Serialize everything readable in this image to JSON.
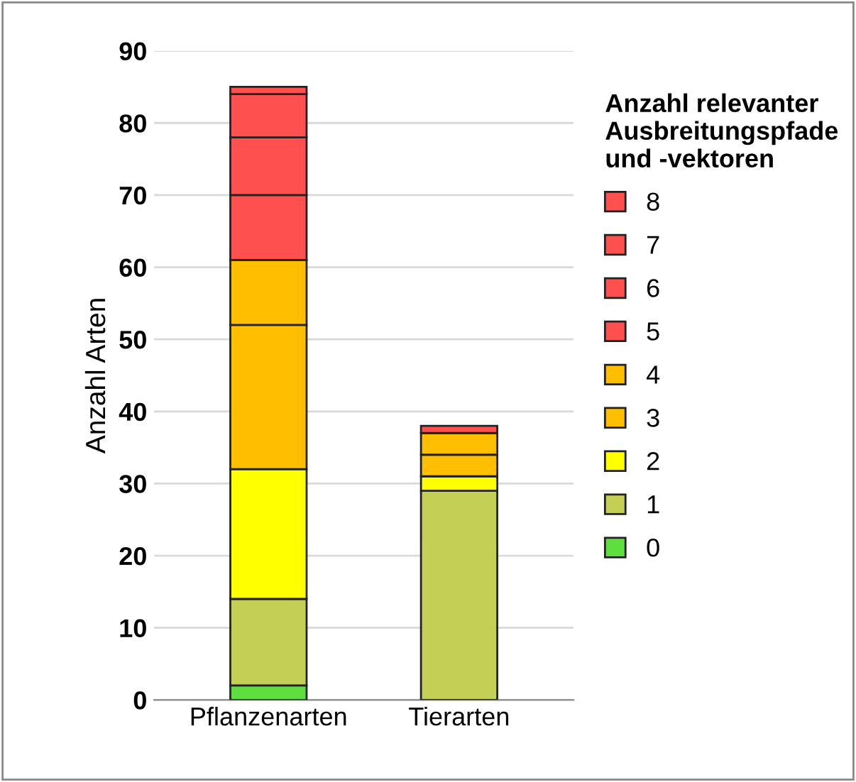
{
  "chart_data": {
    "type": "bar",
    "stacked": true,
    "ylabel": "Anzahl Arten",
    "legend_title": "Anzahl relevanter\nAusbreitungspfade\nund -vektoren",
    "categories": [
      "Pflanzenarten",
      "Tierarten"
    ],
    "series": [
      {
        "name": "0",
        "color": "#5fdf3f",
        "values": [
          2,
          0
        ]
      },
      {
        "name": "1",
        "color": "#c3cf55",
        "values": [
          12,
          29
        ]
      },
      {
        "name": "2",
        "color": "#ffff00",
        "values": [
          18,
          2
        ]
      },
      {
        "name": "3",
        "color": "#ffbf00",
        "values": [
          20,
          3
        ]
      },
      {
        "name": "4",
        "color": "#ffbf00",
        "values": [
          9,
          3
        ]
      },
      {
        "name": "5",
        "color": "#ff5050",
        "values": [
          9,
          1
        ]
      },
      {
        "name": "6",
        "color": "#ff5050",
        "values": [
          8,
          0
        ]
      },
      {
        "name": "7",
        "color": "#ff5050",
        "values": [
          6,
          0
        ]
      },
      {
        "name": "8",
        "color": "#ff5050",
        "values": [
          1,
          0
        ]
      }
    ],
    "ylim": [
      0,
      90
    ],
    "yticks": [
      0,
      10,
      20,
      30,
      40,
      50,
      60,
      70,
      80,
      90
    ],
    "grid": "y",
    "legend": "right"
  }
}
